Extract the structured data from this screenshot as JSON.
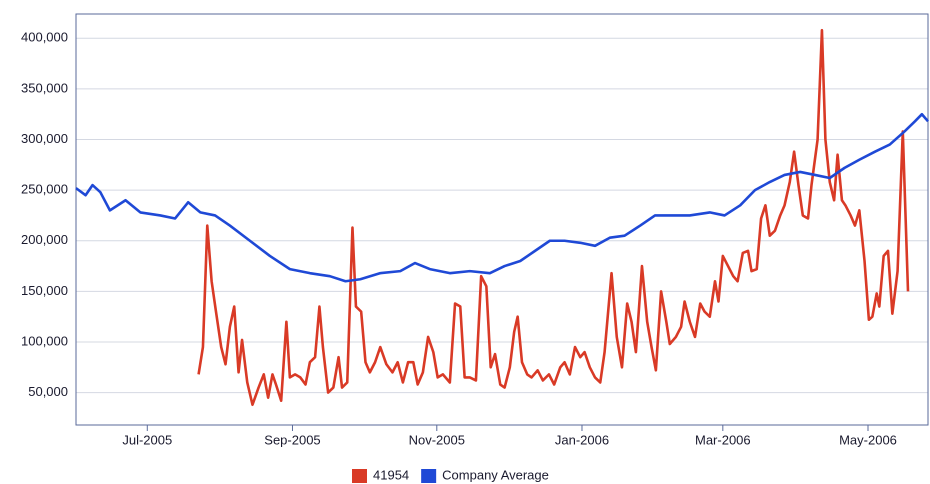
{
  "chart_data": {
    "type": "line",
    "xlim": [
      2005.418,
      2006.398
    ],
    "xticks": [
      {
        "value": 2005.5,
        "label": "Jul-2005"
      },
      {
        "value": 2005.667,
        "label": "Sep-2005"
      },
      {
        "value": 2005.833,
        "label": "Nov-2005"
      },
      {
        "value": 2006.0,
        "label": "Jan-2006"
      },
      {
        "value": 2006.162,
        "label": "Mar-2006"
      },
      {
        "value": 2006.329,
        "label": "May-2006"
      }
    ],
    "ylim": [
      18000,
      424000
    ],
    "yticks": [
      {
        "value": 50000,
        "label": "50,000"
      },
      {
        "value": 100000,
        "label": "100,000"
      },
      {
        "value": 150000,
        "label": "150,000"
      },
      {
        "value": 200000,
        "label": "200,000"
      },
      {
        "value": 250000,
        "label": "250,000"
      },
      {
        "value": 300000,
        "label": "300,000"
      },
      {
        "value": 350000,
        "label": "350,000"
      },
      {
        "value": 400000,
        "label": "400,000"
      }
    ],
    "grid": true,
    "legend": "bottom",
    "series": [
      {
        "name": "41954",
        "color": "#d93a26",
        "x": [
          2005.559,
          2005.564,
          2005.569,
          2005.574,
          2005.579,
          2005.585,
          2005.59,
          2005.595,
          2005.6,
          2005.605,
          2005.609,
          2005.615,
          2005.621,
          2005.628,
          2005.634,
          2005.639,
          2005.644,
          2005.648,
          2005.654,
          2005.66,
          2005.664,
          2005.67,
          2005.676,
          2005.682,
          2005.687,
          2005.693,
          2005.698,
          2005.702,
          2005.708,
          2005.714,
          2005.72,
          2005.724,
          2005.73,
          2005.736,
          2005.74,
          2005.746,
          2005.751,
          2005.756,
          2005.762,
          2005.768,
          2005.775,
          2005.782,
          2005.788,
          2005.794,
          2005.8,
          2005.806,
          2005.811,
          2005.817,
          2005.823,
          2005.829,
          2005.834,
          2005.84,
          2005.848,
          2005.854,
          2005.86,
          2005.865,
          2005.871,
          2005.878,
          2005.884,
          2005.89,
          2005.895,
          2005.9,
          2005.906,
          2005.911,
          2005.917,
          2005.922,
          2005.926,
          2005.931,
          2005.937,
          2005.942,
          2005.949,
          2005.955,
          2005.962,
          2005.968,
          2005.975,
          2005.98,
          2005.986,
          2005.992,
          2005.998,
          2006.003,
          2006.009,
          2006.015,
          2006.021,
          2006.026,
          2006.034,
          2006.04,
          2006.046,
          2006.052,
          2006.057,
          2006.062,
          2006.069,
          2006.075,
          2006.08,
          2006.085,
          2006.091,
          2006.097,
          2006.101,
          2006.108,
          2006.114,
          2006.118,
          2006.124,
          2006.13,
          2006.136,
          2006.141,
          2006.147,
          2006.153,
          2006.157,
          2006.162,
          2006.168,
          2006.174,
          2006.179,
          2006.185,
          2006.191,
          2006.195,
          2006.201,
          2006.206,
          2006.211,
          2006.216,
          2006.222,
          2006.228,
          2006.233,
          2006.239,
          2006.244,
          2006.249,
          2006.254,
          2006.26,
          2006.264,
          2006.271,
          2006.276,
          2006.28,
          2006.285,
          2006.29,
          2006.294,
          2006.299,
          2006.303,
          2006.309,
          2006.314,
          2006.319,
          2006.325,
          2006.33,
          2006.334,
          2006.339,
          2006.342,
          2006.347,
          2006.352,
          2006.357,
          2006.363,
          2006.369,
          2006.375
        ],
        "values": [
          68000,
          95000,
          215000,
          160000,
          130000,
          95000,
          78000,
          115000,
          135000,
          70000,
          102000,
          60000,
          38000,
          55000,
          68000,
          45000,
          68000,
          58000,
          42000,
          120000,
          65000,
          68000,
          65000,
          58000,
          80000,
          85000,
          135000,
          95000,
          50000,
          55000,
          85000,
          55000,
          60000,
          213000,
          135000,
          130000,
          80000,
          70000,
          80000,
          95000,
          78000,
          70000,
          80000,
          60000,
          80000,
          80000,
          58000,
          70000,
          105000,
          90000,
          65000,
          68000,
          60000,
          138000,
          135000,
          65000,
          65000,
          62000,
          165000,
          155000,
          75000,
          88000,
          58000,
          55000,
          75000,
          110000,
          125000,
          80000,
          68000,
          65000,
          72000,
          62000,
          68000,
          58000,
          75000,
          80000,
          68000,
          95000,
          85000,
          90000,
          75000,
          65000,
          60000,
          90000,
          168000,
          105000,
          75000,
          138000,
          120000,
          90000,
          175000,
          120000,
          95000,
          72000,
          150000,
          120000,
          98000,
          105000,
          115000,
          140000,
          120000,
          105000,
          138000,
          130000,
          125000,
          160000,
          140000,
          185000,
          175000,
          165000,
          160000,
          188000,
          190000,
          170000,
          172000,
          222000,
          235000,
          205000,
          210000,
          225000,
          235000,
          258000,
          288000,
          255000,
          225000,
          222000,
          255000,
          300000,
          408000,
          300000,
          258000,
          240000,
          285000,
          240000,
          235000,
          225000,
          215000,
          230000,
          180000,
          122000,
          125000,
          148000,
          135000,
          185000,
          190000,
          128000,
          170000,
          308000,
          150000
        ]
      },
      {
        "name": "Company Average",
        "color": "#1f49d6",
        "x": [
          2005.418,
          2005.429,
          2005.437,
          2005.446,
          2005.457,
          2005.475,
          2005.492,
          2005.515,
          2005.532,
          2005.547,
          2005.561,
          2005.578,
          2005.595,
          2005.618,
          2005.641,
          2005.664,
          2005.687,
          2005.71,
          2005.728,
          2005.745,
          2005.768,
          2005.791,
          2005.808,
          2005.825,
          2005.848,
          2005.871,
          2005.894,
          2005.911,
          2005.929,
          2005.946,
          2005.963,
          2005.98,
          2005.998,
          2006.015,
          2006.032,
          2006.049,
          2006.067,
          2006.084,
          2006.101,
          2006.124,
          2006.147,
          2006.164,
          2006.182,
          2006.199,
          2006.216,
          2006.233,
          2006.251,
          2006.268,
          2006.285,
          2006.302,
          2006.319,
          2006.337,
          2006.354,
          2006.371,
          2006.383,
          2006.391,
          2006.398
        ],
        "values": [
          252000,
          245000,
          255000,
          248000,
          230000,
          240000,
          228000,
          225000,
          222000,
          238000,
          228000,
          225000,
          215000,
          200000,
          185000,
          172000,
          168000,
          165000,
          160000,
          162000,
          168000,
          170000,
          178000,
          172000,
          168000,
          170000,
          168000,
          175000,
          180000,
          190000,
          200000,
          200000,
          198000,
          195000,
          203000,
          205000,
          215000,
          225000,
          225000,
          225000,
          228000,
          225000,
          235000,
          250000,
          258000,
          265000,
          268000,
          265000,
          262000,
          272000,
          280000,
          288000,
          295000,
          308000,
          318000,
          325000,
          318000
        ]
      }
    ]
  }
}
